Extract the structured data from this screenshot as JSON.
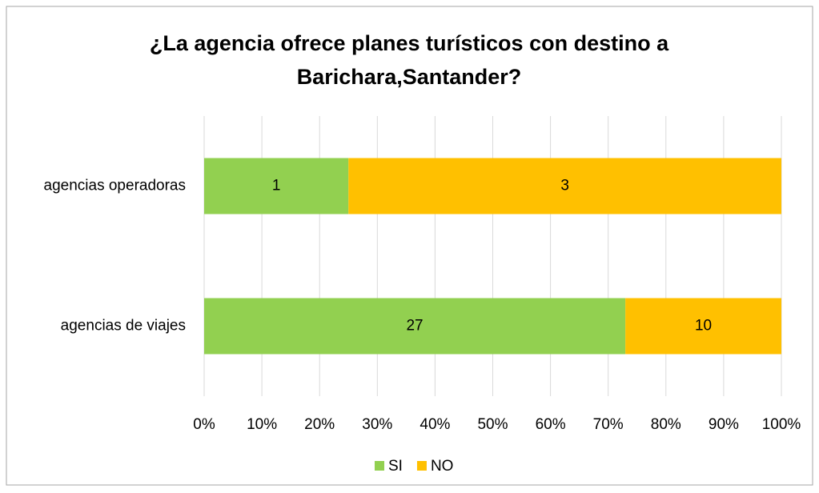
{
  "chart_data": {
    "type": "bar",
    "orientation": "horizontal",
    "stacked": "percent",
    "title": "¿La agencia ofrece planes turísticos con destino a Barichara,Santander?",
    "categories": [
      "agencias operadoras",
      "agencias de viajes"
    ],
    "series": [
      {
        "name": "SI",
        "color": "#92d050",
        "values": [
          1,
          27
        ]
      },
      {
        "name": "NO",
        "color": "#ffc000",
        "values": [
          3,
          10
        ]
      }
    ],
    "xlim": [
      0,
      100
    ],
    "xticks": [
      {
        "value": 0,
        "label": "0%"
      },
      {
        "value": 10,
        "label": "10%"
      },
      {
        "value": 20,
        "label": "20%"
      },
      {
        "value": 30,
        "label": "30%"
      },
      {
        "value": 40,
        "label": "40%"
      },
      {
        "value": 50,
        "label": "50%"
      },
      {
        "value": 60,
        "label": "60%"
      },
      {
        "value": 70,
        "label": "70%"
      },
      {
        "value": 80,
        "label": "80%"
      },
      {
        "value": 90,
        "label": "90%"
      },
      {
        "value": 100,
        "label": "100%"
      }
    ],
    "grid": true,
    "legend": "bottom"
  }
}
